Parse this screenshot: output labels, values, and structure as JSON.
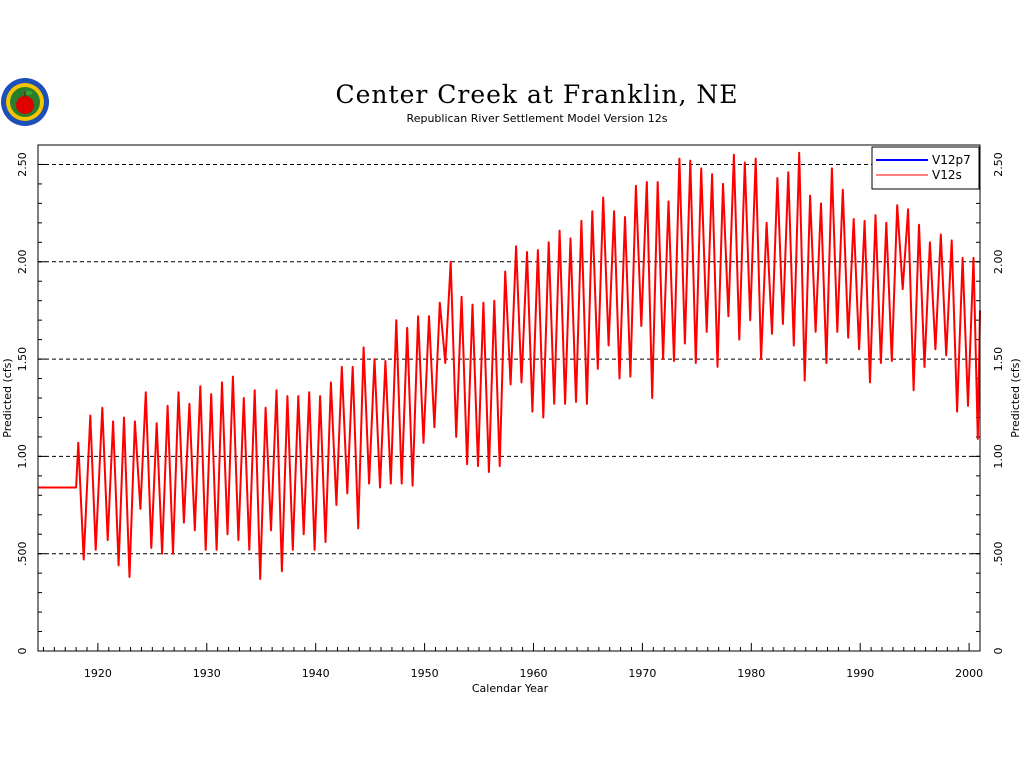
{
  "chart_data": {
    "type": "line",
    "title": "Center Creek at Franklin, NE",
    "subtitle": "Republican River Settlement Model Version 12s",
    "xlabel": "Calendar Year",
    "ylabel": "Predicted (cfs)",
    "ylabel_right": "Predicted (cfs)",
    "xlim": [
      1914.5,
      2001
    ],
    "ylim": [
      0,
      2.6
    ],
    "x_ticks": [
      1920,
      1930,
      1940,
      1950,
      1960,
      1970,
      1980,
      1990,
      2000
    ],
    "x_tick_labels": [
      "1920",
      "1930",
      "1940",
      "1950",
      "1960",
      "1970",
      "1980",
      "1990",
      "2000"
    ],
    "y_ticks": [
      0,
      0.5,
      1.0,
      1.5,
      2.0,
      2.5
    ],
    "y_tick_labels": [
      "0",
      ".500",
      "1.00",
      "1.50",
      "2.00",
      "2.50"
    ],
    "grid": "horizontal dashed",
    "legend_position": "top-right",
    "series": [
      {
        "name": "V12p7",
        "color": "#0000ff",
        "points": []
      },
      {
        "name": "V12s",
        "color": "#ff0000",
        "points": [
          [
            1914.5,
            0.84
          ],
          [
            1918.0,
            0.84
          ],
          [
            1918.2,
            1.07
          ],
          [
            1918.7,
            0.47
          ],
          [
            1919.3,
            1.21
          ],
          [
            1919.8,
            0.52
          ],
          [
            1920.4,
            1.25
          ],
          [
            1920.9,
            0.57
          ],
          [
            1921.4,
            1.18
          ],
          [
            1921.9,
            0.44
          ],
          [
            1922.4,
            1.2
          ],
          [
            1922.9,
            0.38
          ],
          [
            1923.4,
            1.18
          ],
          [
            1923.9,
            0.73
          ],
          [
            1924.4,
            1.33
          ],
          [
            1924.9,
            0.53
          ],
          [
            1925.4,
            1.17
          ],
          [
            1925.9,
            0.5
          ],
          [
            1926.4,
            1.26
          ],
          [
            1926.9,
            0.5
          ],
          [
            1927.4,
            1.33
          ],
          [
            1927.9,
            0.66
          ],
          [
            1928.4,
            1.27
          ],
          [
            1928.9,
            0.62
          ],
          [
            1929.4,
            1.36
          ],
          [
            1929.9,
            0.52
          ],
          [
            1930.4,
            1.32
          ],
          [
            1930.9,
            0.52
          ],
          [
            1931.4,
            1.38
          ],
          [
            1931.9,
            0.6
          ],
          [
            1932.4,
            1.41
          ],
          [
            1932.9,
            0.57
          ],
          [
            1933.4,
            1.3
          ],
          [
            1933.9,
            0.52
          ],
          [
            1934.4,
            1.34
          ],
          [
            1934.9,
            0.37
          ],
          [
            1935.4,
            1.25
          ],
          [
            1935.9,
            0.62
          ],
          [
            1936.4,
            1.34
          ],
          [
            1936.9,
            0.41
          ],
          [
            1937.4,
            1.31
          ],
          [
            1937.9,
            0.52
          ],
          [
            1938.4,
            1.31
          ],
          [
            1938.9,
            0.6
          ],
          [
            1939.4,
            1.33
          ],
          [
            1939.9,
            0.52
          ],
          [
            1940.4,
            1.31
          ],
          [
            1940.9,
            0.56
          ],
          [
            1941.4,
            1.38
          ],
          [
            1941.9,
            0.75
          ],
          [
            1942.4,
            1.46
          ],
          [
            1942.9,
            0.81
          ],
          [
            1943.4,
            1.46
          ],
          [
            1943.9,
            0.63
          ],
          [
            1944.4,
            1.56
          ],
          [
            1944.9,
            0.86
          ],
          [
            1945.4,
            1.5
          ],
          [
            1945.9,
            0.84
          ],
          [
            1946.4,
            1.49
          ],
          [
            1946.9,
            0.86
          ],
          [
            1947.4,
            1.7
          ],
          [
            1947.9,
            0.86
          ],
          [
            1948.4,
            1.66
          ],
          [
            1948.9,
            0.85
          ],
          [
            1949.4,
            1.72
          ],
          [
            1949.9,
            1.07
          ],
          [
            1950.4,
            1.72
          ],
          [
            1950.9,
            1.15
          ],
          [
            1951.4,
            1.79
          ],
          [
            1951.9,
            1.48
          ],
          [
            1952.4,
            2.0
          ],
          [
            1952.9,
            1.1
          ],
          [
            1953.4,
            1.82
          ],
          [
            1953.9,
            0.96
          ],
          [
            1954.4,
            1.78
          ],
          [
            1954.9,
            0.95
          ],
          [
            1955.4,
            1.79
          ],
          [
            1955.9,
            0.92
          ],
          [
            1956.4,
            1.8
          ],
          [
            1956.9,
            0.95
          ],
          [
            1957.4,
            1.95
          ],
          [
            1957.9,
            1.37
          ],
          [
            1958.4,
            2.08
          ],
          [
            1958.9,
            1.38
          ],
          [
            1959.4,
            2.05
          ],
          [
            1959.9,
            1.23
          ],
          [
            1960.4,
            2.06
          ],
          [
            1960.9,
            1.2
          ],
          [
            1961.4,
            2.1
          ],
          [
            1961.9,
            1.27
          ],
          [
            1962.4,
            2.16
          ],
          [
            1962.9,
            1.27
          ],
          [
            1963.4,
            2.12
          ],
          [
            1963.9,
            1.28
          ],
          [
            1964.4,
            2.21
          ],
          [
            1964.9,
            1.27
          ],
          [
            1965.4,
            2.26
          ],
          [
            1965.9,
            1.45
          ],
          [
            1966.4,
            2.33
          ],
          [
            1966.9,
            1.57
          ],
          [
            1967.4,
            2.26
          ],
          [
            1967.9,
            1.4
          ],
          [
            1968.4,
            2.23
          ],
          [
            1968.9,
            1.41
          ],
          [
            1969.4,
            2.39
          ],
          [
            1969.9,
            1.67
          ],
          [
            1970.4,
            2.41
          ],
          [
            1970.9,
            1.3
          ],
          [
            1971.4,
            2.41
          ],
          [
            1971.9,
            1.5
          ],
          [
            1972.4,
            2.31
          ],
          [
            1972.9,
            1.49
          ],
          [
            1973.4,
            2.53
          ],
          [
            1973.9,
            1.58
          ],
          [
            1974.4,
            2.52
          ],
          [
            1974.9,
            1.48
          ],
          [
            1975.4,
            2.48
          ],
          [
            1975.9,
            1.64
          ],
          [
            1976.4,
            2.45
          ],
          [
            1976.9,
            1.46
          ],
          [
            1977.4,
            2.4
          ],
          [
            1977.9,
            1.72
          ],
          [
            1978.4,
            2.55
          ],
          [
            1978.9,
            1.6
          ],
          [
            1979.4,
            2.51
          ],
          [
            1979.9,
            1.7
          ],
          [
            1980.4,
            2.53
          ],
          [
            1980.9,
            1.5
          ],
          [
            1981.4,
            2.2
          ],
          [
            1981.9,
            1.63
          ],
          [
            1982.4,
            2.43
          ],
          [
            1982.9,
            1.68
          ],
          [
            1983.4,
            2.46
          ],
          [
            1983.9,
            1.57
          ],
          [
            1984.4,
            2.56
          ],
          [
            1984.9,
            1.39
          ],
          [
            1985.4,
            2.34
          ],
          [
            1985.9,
            1.64
          ],
          [
            1986.4,
            2.3
          ],
          [
            1986.9,
            1.48
          ],
          [
            1987.4,
            2.48
          ],
          [
            1987.9,
            1.64
          ],
          [
            1988.4,
            2.37
          ],
          [
            1988.9,
            1.61
          ],
          [
            1989.4,
            2.22
          ],
          [
            1989.9,
            1.55
          ],
          [
            1990.4,
            2.21
          ],
          [
            1990.9,
            1.38
          ],
          [
            1991.4,
            2.24
          ],
          [
            1991.9,
            1.48
          ],
          [
            1992.4,
            2.2
          ],
          [
            1992.9,
            1.49
          ],
          [
            1993.4,
            2.29
          ],
          [
            1993.9,
            1.86
          ],
          [
            1994.4,
            2.27
          ],
          [
            1994.9,
            1.34
          ],
          [
            1995.4,
            2.19
          ],
          [
            1995.9,
            1.46
          ],
          [
            1996.4,
            2.1
          ],
          [
            1996.9,
            1.55
          ],
          [
            1997.4,
            2.14
          ],
          [
            1997.9,
            1.52
          ],
          [
            1998.4,
            2.11
          ],
          [
            1998.9,
            1.23
          ],
          [
            1999.4,
            2.02
          ],
          [
            1999.9,
            1.26
          ],
          [
            2000.4,
            2.02
          ],
          [
            2000.8,
            1.09
          ],
          [
            2001.0,
            1.75
          ]
        ]
      }
    ]
  },
  "logo": {
    "name": "apple-seal-logo-icon"
  }
}
